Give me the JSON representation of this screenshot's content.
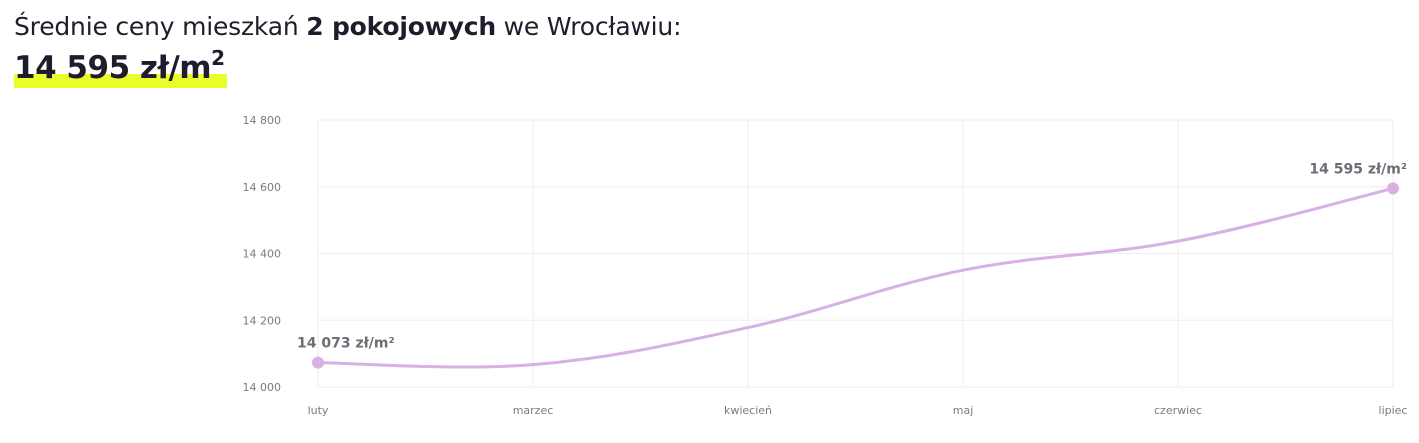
{
  "header": {
    "prefix": "Średnie ceny mieszkań ",
    "bold": "2 pokojowych",
    "suffix": " we Wrocławiu:",
    "price_value": "14 595 zł/m",
    "price_sup": "2"
  },
  "colors": {
    "line": "#d8b0e3",
    "highlight": "#eaff2a",
    "grid": "#eeeeee",
    "text": "#1f1d2b",
    "muted": "#7a7a82"
  },
  "chart_data": {
    "type": "line",
    "categories": [
      "luty",
      "marzec",
      "kwiecień",
      "maj",
      "czerwiec",
      "lipiec"
    ],
    "series": [
      {
        "values": [
          14073,
          14067,
          14178,
          14350,
          14437,
          14595
        ]
      }
    ],
    "ylim": [
      14000,
      14800
    ],
    "yticks": [
      14000,
      14200,
      14400,
      14600,
      14800
    ],
    "ytick_labels": [
      "14 000",
      "14 200",
      "14 400",
      "14 600",
      "14 800"
    ],
    "annotations": [
      {
        "index": 0,
        "text": "14 073 zł/m²"
      },
      {
        "index": 5,
        "text": "14 595 zł/m²"
      }
    ],
    "grid": true,
    "legend": "none"
  }
}
